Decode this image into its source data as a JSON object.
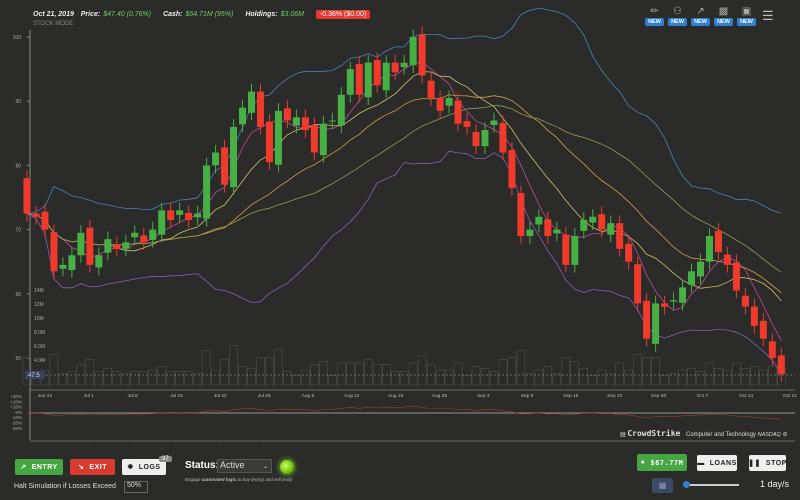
{
  "header": {
    "date": "Oct 21, 2019",
    "price_label": "Price:",
    "price": "$47.40 (0.76%)",
    "cash_label": "Cash:",
    "cash": "$64.71M (95%)",
    "holdings_label": "Holdings:",
    "holdings": "$3.06M",
    "change_badge": "-0.36% ($0.00)",
    "mode": "STOCK MODE"
  },
  "tools": [
    {
      "icon": "brush-icon",
      "badge": "NEW"
    },
    {
      "icon": "people-icon",
      "badge": "NEW"
    },
    {
      "icon": "trend-icon",
      "badge": "NEW"
    },
    {
      "icon": "blocks-icon",
      "badge": "NEW"
    },
    {
      "icon": "robot-icon",
      "badge": "NEW"
    }
  ],
  "menu_icon": "hamburger-icon",
  "colors": {
    "up": "#46b044",
    "down": "#ef3a2c",
    "background": "#2b2b29",
    "accent": "#2f7fd6"
  },
  "chart_data": {
    "type": "candlestick",
    "price_ticks": [
      "100",
      "90",
      "80",
      "70",
      "60",
      "50"
    ],
    "price_tag": "47.5",
    "volume_ticks": [
      "14M",
      "12M",
      "10M",
      "8.0M",
      "6.0M",
      "4.0M"
    ],
    "pct_ticks": [
      "+30%",
      "+20%",
      "+10%",
      "0%",
      "-10%",
      "-20%",
      "-30%"
    ],
    "date_ticks": [
      "Jun 24",
      "Jul 1",
      "Jul 8",
      "Jul 15",
      "Jul 22",
      "Jul 29",
      "Aug 5",
      "Aug 12",
      "Aug 19",
      "Aug 26",
      "Sep 3",
      "Sep 9",
      "Sep 16",
      "Sep 23",
      "Sep 30",
      "Oct 7",
      "Oct 14",
      "Oct 21"
    ],
    "ylim": [
      40,
      102
    ],
    "first_open": 78,
    "closes": [
      72.5,
      72,
      70,
      63.5,
      64.5,
      66,
      69.5,
      64.5,
      66,
      68.5,
      67,
      68,
      69.5,
      68,
      70,
      73,
      71.5,
      73,
      71.5,
      72.5,
      80,
      82,
      77,
      86,
      89,
      91.5,
      86,
      80.5,
      88.5,
      87,
      87.5,
      85.5,
      82,
      86.5,
      87,
      91,
      95,
      91,
      96,
      92.5,
      96,
      94.5,
      96,
      100,
      94,
      90.5,
      88.5,
      90.5,
      86.5,
      86,
      83,
      85.5,
      87,
      82,
      76.5,
      69,
      70,
      72,
      69,
      70,
      64.5,
      69,
      71.5,
      72,
      70,
      71,
      67,
      65,
      58.5,
      53,
      58.5,
      58,
      59,
      61,
      63.5,
      65,
      69,
      66.5,
      64.5,
      60.5,
      58,
      55,
      53,
      50,
      47.5
    ]
  },
  "company": {
    "name": "CrowdStrike",
    "sector": "Computer and Technology",
    "exchange": "NASDAQ"
  },
  "controls": {
    "entry": "ENTRY",
    "exit": "EXIT",
    "logs": "LOGS",
    "logs_count": "37",
    "status_label": "Status:",
    "status_value": "Active",
    "engage_pre": "Engage ",
    "engage_bold": "automated logic",
    "engage_post": " to buy (entry) and sell (exit)",
    "halt_label": "Halt Simulation if Losses Exceed",
    "halt_value": "50%",
    "cash": "$67.77M",
    "loans": "LOANS",
    "stop": "STOP",
    "speed": "1 day/s"
  }
}
